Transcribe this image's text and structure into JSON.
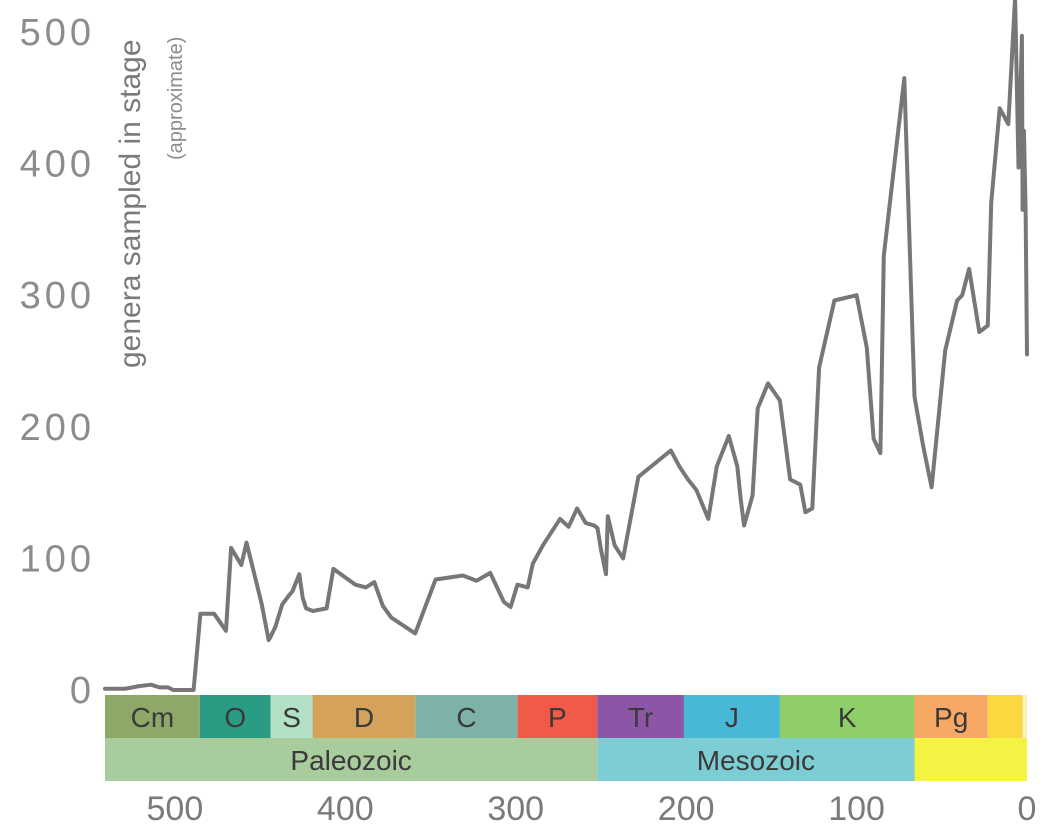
{
  "chart_data": {
    "type": "line",
    "ylabel": "genera sampled in stage",
    "ylabel_note": "(approximate)",
    "xlabel": "",
    "xlim": [
      541,
      0
    ],
    "ylim": [
      0,
      520
    ],
    "x_reversed": true,
    "y_ticks": [
      0,
      100,
      200,
      300,
      400,
      500
    ],
    "x_ticks": [
      500,
      400,
      300,
      200,
      100,
      0
    ],
    "grid": false,
    "line_color": "#777777",
    "series": [
      {
        "x": [
          541,
          529,
          521,
          514,
          509,
          504,
          501,
          497,
          494,
          489,
          485,
          477,
          470,
          467,
          461,
          458,
          453,
          449,
          445,
          444,
          441,
          437,
          433,
          431,
          427,
          425,
          423,
          419,
          411,
          407,
          394,
          388,
          383,
          378,
          373,
          359,
          347,
          331,
          323,
          315,
          307,
          303,
          299,
          293,
          290,
          284,
          274,
          269,
          264,
          259,
          254,
          252,
          250,
          247,
          246,
          242,
          237,
          228,
          209,
          204,
          199,
          194,
          187,
          182,
          175,
          170,
          168,
          166,
          161,
          158,
          152,
          145,
          139,
          133,
          130,
          126,
          122,
          113,
          100,
          94,
          90,
          86,
          84,
          72,
          66,
          61,
          56,
          48,
          41,
          38,
          34,
          28,
          23,
          21,
          16,
          11,
          7,
          5,
          3,
          2.6,
          1.8,
          0.8,
          0.01
        ],
        "y": [
          1,
          1,
          3,
          4,
          2,
          2,
          0,
          0,
          0,
          0,
          58,
          58,
          45,
          108,
          95,
          112,
          86,
          65,
          38,
          40,
          48,
          65,
          72,
          75,
          88,
          70,
          62,
          60,
          62,
          92,
          80,
          78,
          82,
          64,
          55,
          43,
          84,
          87,
          83,
          89,
          67,
          63,
          80,
          78,
          96,
          110,
          130,
          124,
          138,
          127,
          125,
          123,
          107,
          88,
          132,
          110,
          100,
          162,
          182,
          170,
          160,
          152,
          130,
          170,
          193,
          170,
          145,
          125,
          148,
          214,
          233,
          220,
          160,
          156,
          135,
          138,
          245,
          296,
          300,
          260,
          191,
          180,
          330,
          465,
          223,
          186,
          154,
          258,
          296,
          300,
          320,
          272,
          277,
          370,
          442,
          430,
          526,
          397,
          497,
          365,
          425,
          365,
          255
        ]
      }
    ],
    "timescale": {
      "periods": [
        {
          "label": "Cm",
          "start": 541,
          "end": 485.4,
          "color": "#8ea86a"
        },
        {
          "label": "O",
          "start": 485.4,
          "end": 443.8,
          "color": "#2a9c84"
        },
        {
          "label": "S",
          "start": 443.8,
          "end": 419.2,
          "color": "#b3e1c5"
        },
        {
          "label": "D",
          "start": 419.2,
          "end": 358.9,
          "color": "#d4a25a"
        },
        {
          "label": "C",
          "start": 358.9,
          "end": 298.9,
          "color": "#7eb1a7"
        },
        {
          "label": "P",
          "start": 298.9,
          "end": 252.2,
          "color": "#ef5b48"
        },
        {
          "label": "Tr",
          "start": 252.2,
          "end": 201.3,
          "color": "#8d55a6"
        },
        {
          "label": "J",
          "start": 201.3,
          "end": 145,
          "color": "#47b8d5"
        },
        {
          "label": "K",
          "start": 145,
          "end": 66,
          "color": "#8fcf6a"
        },
        {
          "label": "Pg",
          "start": 66,
          "end": 23,
          "color": "#f8a865"
        },
        {
          "label": "",
          "start": 23,
          "end": 2.6,
          "color": "#fcd840"
        },
        {
          "label": "",
          "start": 2.6,
          "end": 0,
          "color": "#f8f3b9"
        }
      ],
      "eras": [
        {
          "label": "Paleozoic",
          "start": 541,
          "end": 252.2,
          "color": "#a9cc9c"
        },
        {
          "label": "Mesozoic",
          "start": 252.2,
          "end": 66,
          "color": "#7ccdd4"
        },
        {
          "label": "",
          "start": 66,
          "end": 0,
          "color": "#f2f342"
        }
      ]
    }
  }
}
